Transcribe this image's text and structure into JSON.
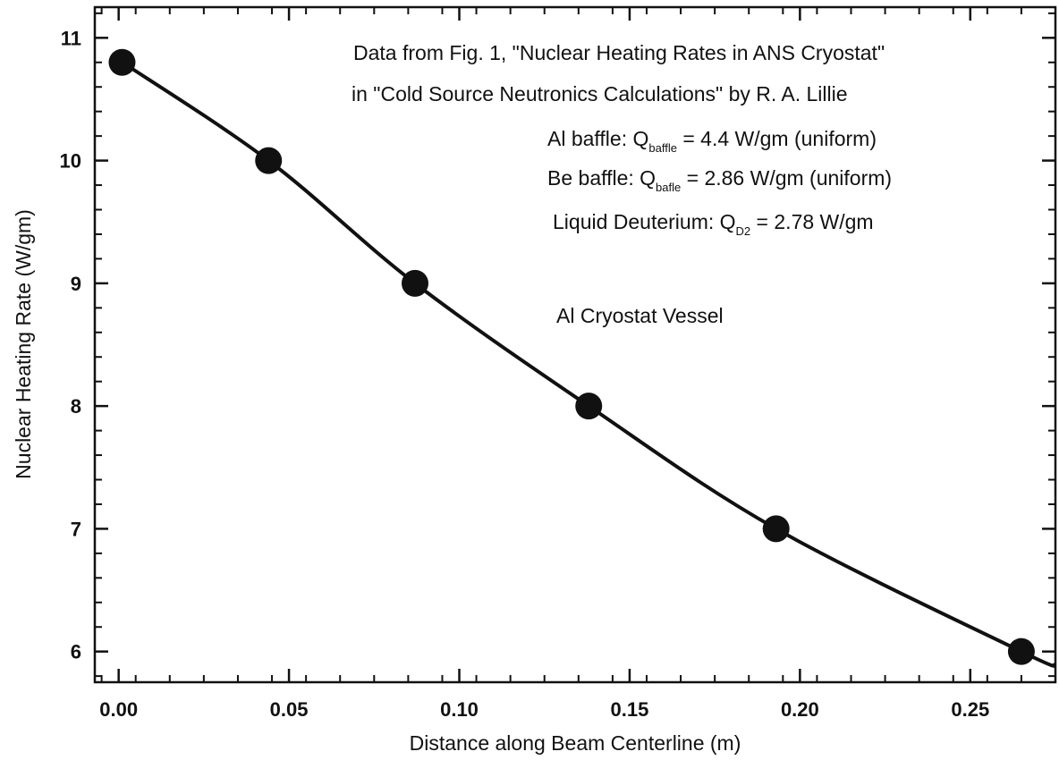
{
  "chart_data": {
    "type": "scatter",
    "title": "",
    "xlabel": "Distance along Beam Centerline (m)",
    "ylabel": "Nuclear Heating Rate (W/gm)",
    "xlim": [
      -0.007,
      0.275
    ],
    "ylim": [
      5.75,
      11.25
    ],
    "x_ticks": [
      0.0,
      0.05,
      0.1,
      0.15,
      0.2,
      0.25
    ],
    "x_tick_labels": [
      "0.00",
      "0.05",
      "0.10",
      "0.15",
      "0.20",
      "0.25"
    ],
    "y_ticks": [
      6,
      7,
      8,
      9,
      10,
      11
    ],
    "y_tick_labels": [
      "6",
      "7",
      "8",
      "9",
      "10",
      "11"
    ],
    "grid": false,
    "legend": "none",
    "series": [
      {
        "marker": "filled-circle",
        "color": "#111111",
        "x": [
          0.001,
          0.044,
          0.087,
          0.138,
          0.193,
          0.265
        ],
        "y": [
          10.8,
          10.0,
          9.0,
          8.0,
          7.0,
          6.0
        ]
      }
    ],
    "fit_curve": {
      "color": "#111111",
      "x": [
        0.0,
        0.044,
        0.087,
        0.138,
        0.193,
        0.265,
        0.275
      ],
      "y": [
        10.82,
        10.0,
        9.0,
        8.0,
        7.0,
        6.0,
        5.89
      ]
    },
    "annotations": {
      "line1": "Data from Fig. 1, \"Nuclear Heating Rates in ANS Cryostat\"",
      "line2": "in \"Cold Source Neutronics Calculations\" by R. A. Lillie",
      "al_baffle_prefix": "Al baffle: Q",
      "al_baffle_sub": "baffle",
      "al_baffle_suffix": " = 4.4 W/gm (uniform)",
      "be_baffle_prefix": "Be baffle: Q",
      "be_baffle_sub": "bafle",
      "be_baffle_suffix": " = 2.86 W/gm (uniform)",
      "d2_prefix": "Liquid Deuterium: Q",
      "d2_sub": "D2",
      "d2_suffix": " = 2.78 W/gm",
      "vessel": "Al Cryostat Vessel"
    }
  }
}
